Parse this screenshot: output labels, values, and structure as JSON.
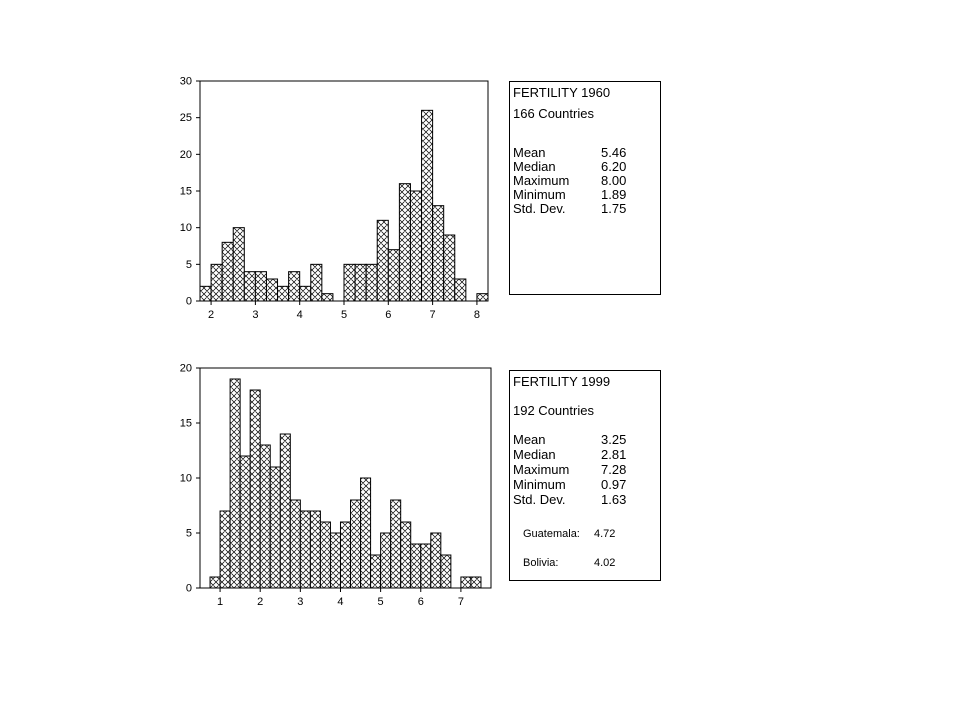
{
  "chart_data": [
    {
      "type": "bar",
      "subtype": "histogram",
      "title": "",
      "xlabel": "",
      "ylabel": "",
      "bin_width": 0.25,
      "bin_start": 1.75,
      "values": [
        2,
        5,
        8,
        10,
        4,
        4,
        3,
        2,
        4,
        2,
        5,
        1,
        0,
        5,
        5,
        5,
        11,
        7,
        16,
        15,
        26,
        13,
        9,
        3,
        0,
        1
      ],
      "xlim": [
        1.75,
        8.25
      ],
      "ylim": [
        0,
        30
      ],
      "x_ticks": [
        2,
        3,
        4,
        5,
        6,
        7,
        8
      ],
      "y_ticks": [
        0,
        5,
        10,
        15,
        20,
        25,
        30
      ],
      "fill_pattern": "crosshatch",
      "grid": false,
      "stats": {
        "title": "FERTILITY 1960",
        "subtitle": "166 Countries",
        "rows": [
          {
            "label": "Mean",
            "value": "5.46"
          },
          {
            "label": "Median",
            "value": "6.20"
          },
          {
            "label": "Maximum",
            "value": "8.00"
          },
          {
            "label": "Minimum",
            "value": "1.89"
          },
          {
            "label": "Std. Dev.",
            "value": "1.75"
          }
        ]
      }
    },
    {
      "type": "bar",
      "subtype": "histogram",
      "title": "",
      "xlabel": "",
      "ylabel": "",
      "bin_width": 0.25,
      "bin_start": 0.75,
      "values": [
        1,
        7,
        19,
        12,
        18,
        13,
        11,
        14,
        8,
        7,
        7,
        6,
        5,
        6,
        8,
        10,
        3,
        5,
        8,
        6,
        4,
        4,
        5,
        3,
        0,
        1,
        1
      ],
      "xlim": [
        0.5,
        7.75
      ],
      "ylim": [
        0,
        20
      ],
      "x_ticks": [
        1,
        2,
        3,
        4,
        5,
        6,
        7
      ],
      "y_ticks": [
        0,
        5,
        10,
        15,
        20
      ],
      "fill_pattern": "crosshatch",
      "grid": false,
      "stats": {
        "title": "FERTILITY 1999",
        "subtitle": "192 Countries",
        "rows": [
          {
            "label": "Mean",
            "value": "3.25"
          },
          {
            "label": "Median",
            "value": "2.81"
          },
          {
            "label": "Maximum",
            "value": "7.28"
          },
          {
            "label": "Minimum",
            "value": "0.97"
          },
          {
            "label": "Std. Dev.",
            "value": "1.63"
          }
        ],
        "notes": [
          {
            "label": "Guatemala:",
            "value": "4.72"
          },
          {
            "label": "Bolivia:",
            "value": "4.02"
          }
        ]
      }
    }
  ]
}
